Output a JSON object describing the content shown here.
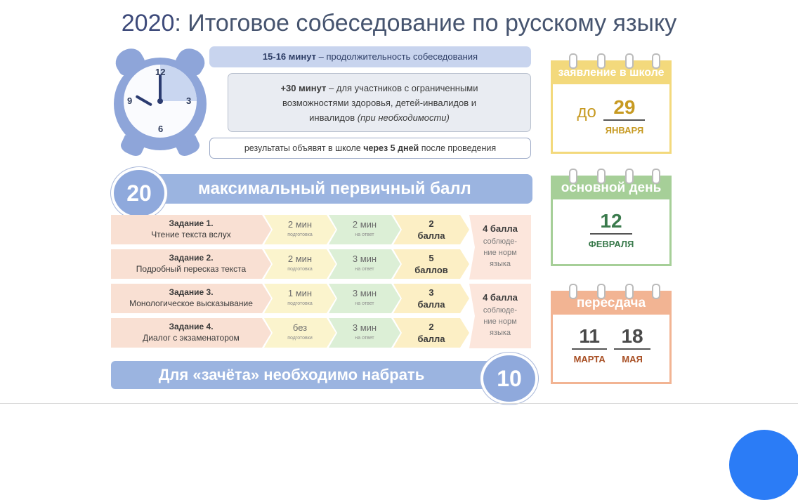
{
  "title": {
    "year": "2020",
    "rest": ": Итоговое собеседование по русскому языку"
  },
  "clock": {
    "n12": "12",
    "n3": "3",
    "n6": "6",
    "n9": "9"
  },
  "info": {
    "duration_bold": "15-16 минут",
    "duration_rest": " – продолжительность собеседования",
    "extra_bold": "+30 минут",
    "extra_line1": " – для участников с ограниченными",
    "extra_line2": "возможностями здоровья, детей-инвалидов и",
    "extra_line3": "инвалидов ",
    "extra_italic": "(при необходимости)",
    "results_pre": "результаты объявят в школе ",
    "results_bold": "через 5 дней",
    "results_post": " после проведения"
  },
  "max_score": {
    "value": "20",
    "label": "максимальный первичный балл"
  },
  "tasks": [
    {
      "name": "Задание 1.",
      "desc": "Чтение текста вслух",
      "prep": "2 мин",
      "prep_note": "подготовка",
      "ans": "2 мин",
      "ans_note": "на ответ",
      "pts": "2",
      "pts_unit": "балла"
    },
    {
      "name": "Задание 2.",
      "desc": "Подробный пересказ текста",
      "prep": "2 мин",
      "prep_note": "подготовка",
      "ans": "3 мин",
      "ans_note": "на ответ",
      "pts": "5",
      "pts_unit": "баллов"
    },
    {
      "name": "Задание 3.",
      "desc": "Монологическое высказывание",
      "prep": "1 мин",
      "prep_note": "подготовка",
      "ans": "3 мин",
      "ans_note": "на ответ",
      "pts": "3",
      "pts_unit": "балла"
    },
    {
      "name": "Задание 4.",
      "desc": "Диалог с экзаменатором",
      "prep": "без",
      "prep_note": "подготовки",
      "ans": "3 мин",
      "ans_note": "на ответ",
      "pts": "2",
      "pts_unit": "балла"
    }
  ],
  "norms": [
    {
      "score": "4 балла",
      "l1": "соблюде-",
      "l2": "ние норм",
      "l3": "языка"
    },
    {
      "score": "4 балла",
      "l1": "соблюде-",
      "l2": "ние норм",
      "l3": "языка"
    }
  ],
  "pass": {
    "label": "Для «зачёта» необходимо набрать",
    "value": "10"
  },
  "calendars": {
    "application": {
      "head": "заявление в школе",
      "prefix": "до",
      "day": "29",
      "month": "ЯНВАРЯ"
    },
    "main": {
      "head": "основной день",
      "day": "12",
      "month": "ФЕВРАЛЯ"
    },
    "retake": {
      "head": "пересдача",
      "day1": "11",
      "month1": "МАРТА",
      "day2": "18",
      "month2": "МАЯ"
    }
  },
  "colors": {
    "accent": "#9bb4e0",
    "yellow": "#f3d97c",
    "green": "#a6cf98",
    "orange": "#f2b493",
    "fab": "#2b7cf6"
  }
}
